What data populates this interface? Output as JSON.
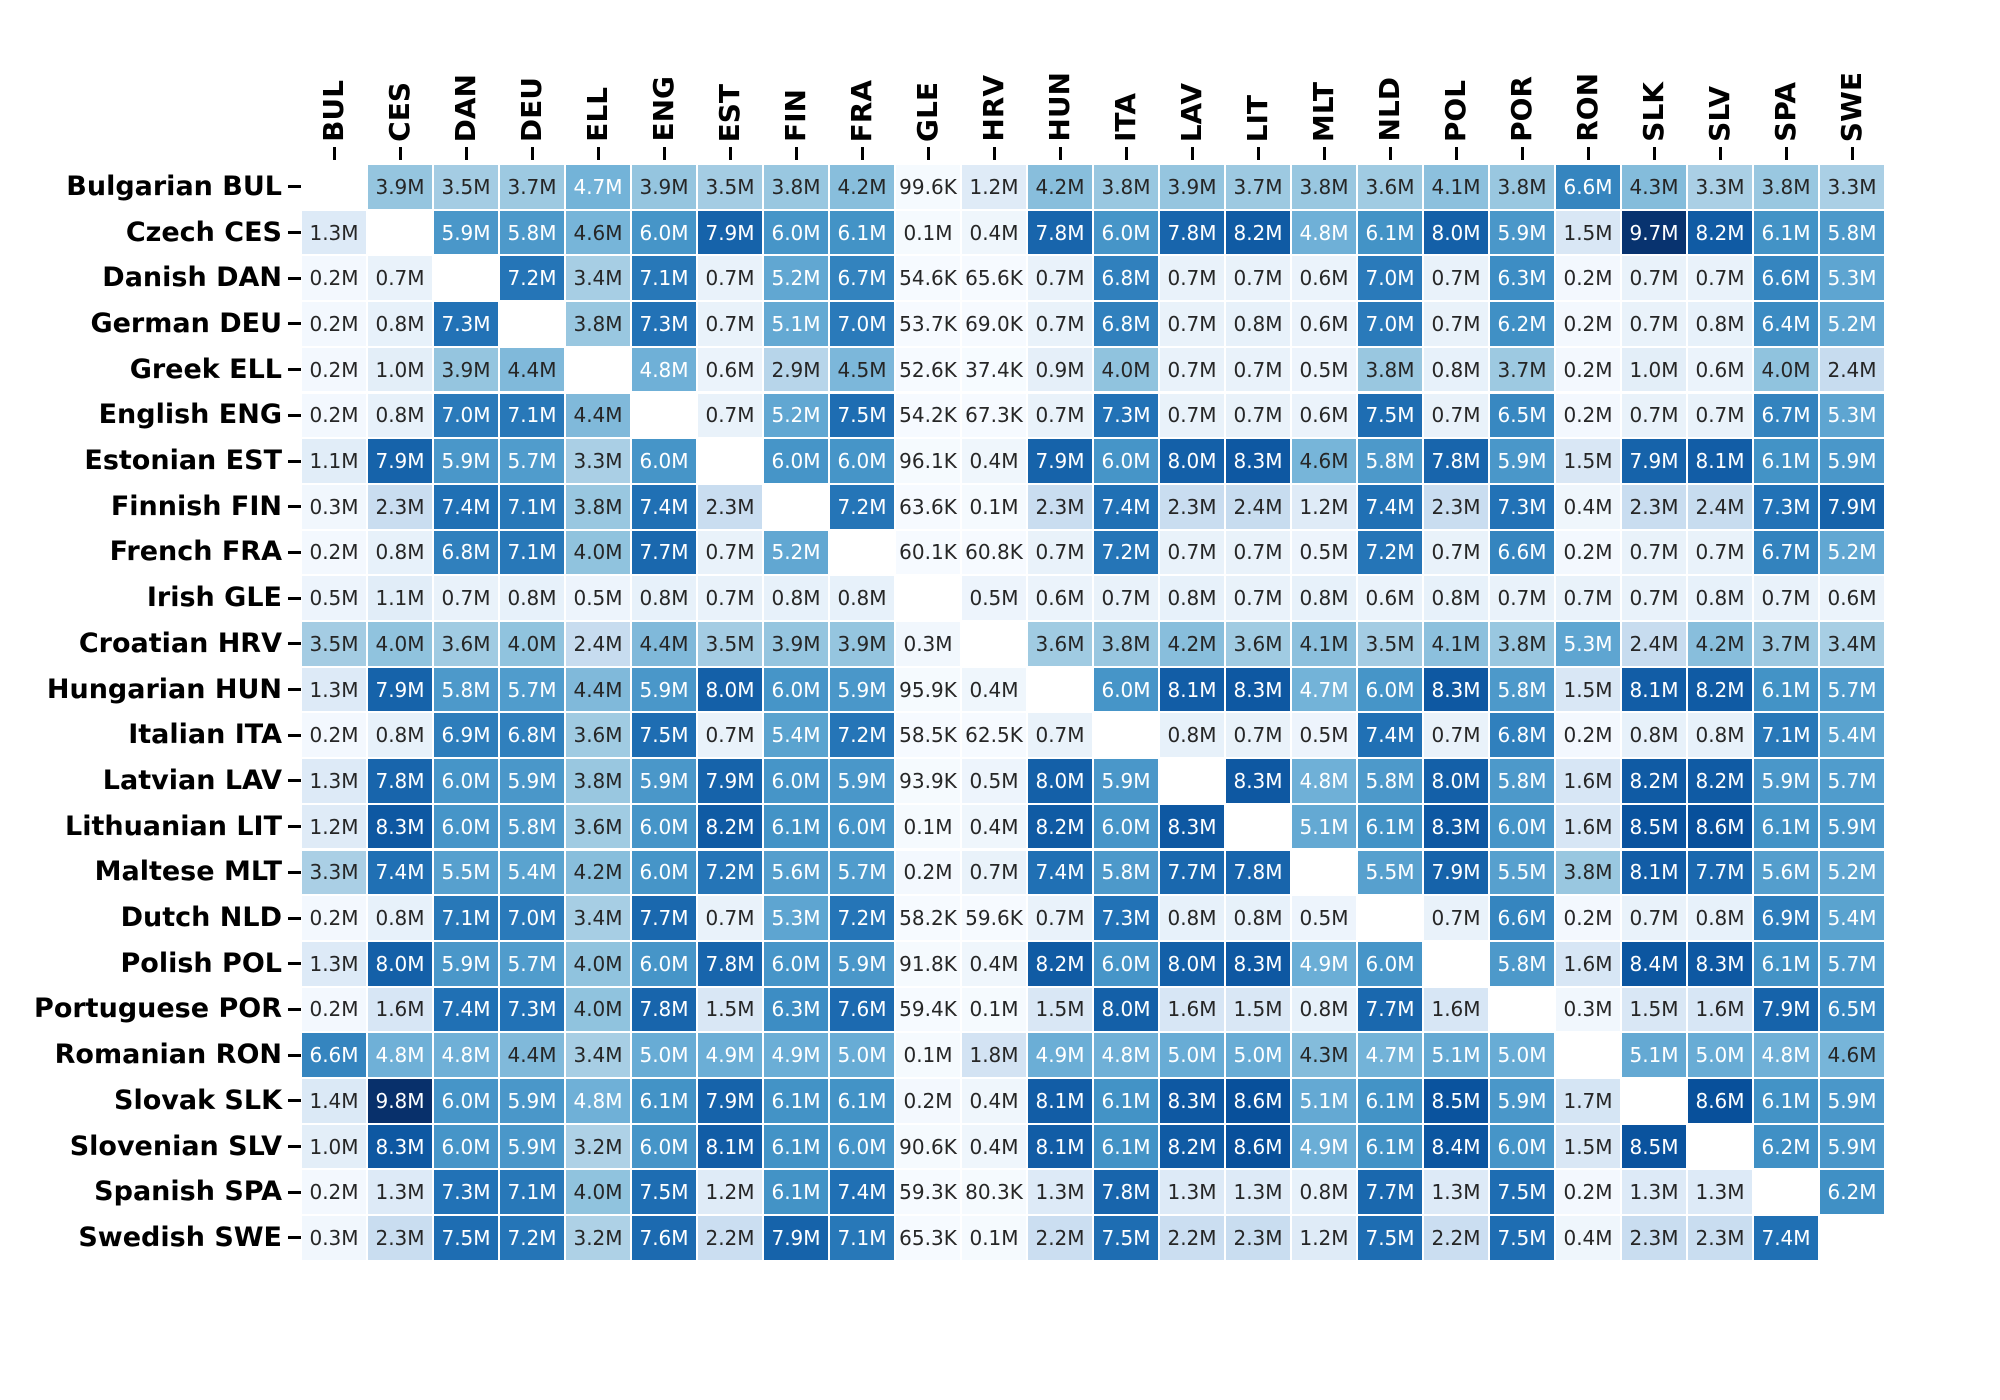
{
  "figure": {
    "background": "#ffffff",
    "title": ""
  },
  "chart_data": {
    "type": "heatmap",
    "columns": [
      "BUL",
      "CES",
      "DAN",
      "DEU",
      "ELL",
      "ENG",
      "EST",
      "FIN",
      "FRA",
      "GLE",
      "HRV",
      "HUN",
      "ITA",
      "LAV",
      "LIT",
      "MLT",
      "NLD",
      "POL",
      "POR",
      "RON",
      "SLK",
      "SLV",
      "SPA",
      "SWE"
    ],
    "rows": [
      {
        "label": "Bulgarian BUL",
        "language": "Bulgarian",
        "code": "BUL"
      },
      {
        "label": "Czech CES",
        "language": "Czech",
        "code": "CES"
      },
      {
        "label": "Danish DAN",
        "language": "Danish",
        "code": "DAN"
      },
      {
        "label": "German DEU",
        "language": "German",
        "code": "DEU"
      },
      {
        "label": "Greek ELL",
        "language": "Greek",
        "code": "ELL"
      },
      {
        "label": "English ENG",
        "language": "English",
        "code": "ENG"
      },
      {
        "label": "Estonian EST",
        "language": "Estonian",
        "code": "EST"
      },
      {
        "label": "Finnish FIN",
        "language": "Finnish",
        "code": "FIN"
      },
      {
        "label": "French FRA",
        "language": "French",
        "code": "FRA"
      },
      {
        "label": "Irish GLE",
        "language": "Irish",
        "code": "GLE"
      },
      {
        "label": "Croatian HRV",
        "language": "Croatian",
        "code": "HRV"
      },
      {
        "label": "Hungarian HUN",
        "language": "Hungarian",
        "code": "HUN"
      },
      {
        "label": "Italian ITA",
        "language": "Italian",
        "code": "ITA"
      },
      {
        "label": "Latvian LAV",
        "language": "Latvian",
        "code": "LAV"
      },
      {
        "label": "Lithuanian LIT",
        "language": "Lithuanian",
        "code": "LIT"
      },
      {
        "label": "Maltese MLT",
        "language": "Maltese",
        "code": "MLT"
      },
      {
        "label": "Dutch NLD",
        "language": "Dutch",
        "code": "NLD"
      },
      {
        "label": "Polish POL",
        "language": "Polish",
        "code": "POL"
      },
      {
        "label": "Portuguese POR",
        "language": "Portuguese",
        "code": "POR"
      },
      {
        "label": "Romanian RON",
        "language": "Romanian",
        "code": "RON"
      },
      {
        "label": "Slovak SLK",
        "language": "Slovak",
        "code": "SLK"
      },
      {
        "label": "Slovenian SLV",
        "language": "Slovenian",
        "code": "SLV"
      },
      {
        "label": "Spanish SPA",
        "language": "Spanish",
        "code": "SPA"
      },
      {
        "label": "Swedish SWE",
        "language": "Swedish",
        "code": "SWE"
      }
    ],
    "matrix": [
      [
        "",
        "3.9M",
        "3.5M",
        "3.7M",
        "4.7M",
        "3.9M",
        "3.5M",
        "3.8M",
        "4.2M",
        "99.6K",
        "1.2M",
        "4.2M",
        "3.8M",
        "3.9M",
        "3.7M",
        "3.8M",
        "3.6M",
        "4.1M",
        "3.8M",
        "6.6M",
        "4.3M",
        "3.3M",
        "3.8M",
        "3.3M"
      ],
      [
        "1.3M",
        "",
        "5.9M",
        "5.8M",
        "4.6M",
        "6.0M",
        "7.9M",
        "6.0M",
        "6.1M",
        "0.1M",
        "0.4M",
        "7.8M",
        "6.0M",
        "7.8M",
        "8.2M",
        "4.8M",
        "6.1M",
        "8.0M",
        "5.9M",
        "1.5M",
        "9.7M",
        "8.2M",
        "6.1M",
        "5.8M"
      ],
      [
        "0.2M",
        "0.7M",
        "",
        "7.2M",
        "3.4M",
        "7.1M",
        "0.7M",
        "5.2M",
        "6.7M",
        "54.6K",
        "65.6K",
        "0.7M",
        "6.8M",
        "0.7M",
        "0.7M",
        "0.6M",
        "7.0M",
        "0.7M",
        "6.3M",
        "0.2M",
        "0.7M",
        "0.7M",
        "6.6M",
        "5.3M"
      ],
      [
        "0.2M",
        "0.8M",
        "7.3M",
        "",
        "3.8M",
        "7.3M",
        "0.7M",
        "5.1M",
        "7.0M",
        "53.7K",
        "69.0K",
        "0.7M",
        "6.8M",
        "0.7M",
        "0.8M",
        "0.6M",
        "7.0M",
        "0.7M",
        "6.2M",
        "0.2M",
        "0.7M",
        "0.8M",
        "6.4M",
        "5.2M"
      ],
      [
        "0.2M",
        "1.0M",
        "3.9M",
        "4.4M",
        "",
        "4.8M",
        "0.6M",
        "2.9M",
        "4.5M",
        "52.6K",
        "37.4K",
        "0.9M",
        "4.0M",
        "0.7M",
        "0.7M",
        "0.5M",
        "3.8M",
        "0.8M",
        "3.7M",
        "0.2M",
        "1.0M",
        "0.6M",
        "4.0M",
        "2.4M"
      ],
      [
        "0.2M",
        "0.8M",
        "7.0M",
        "7.1M",
        "4.4M",
        "",
        "0.7M",
        "5.2M",
        "7.5M",
        "54.2K",
        "67.3K",
        "0.7M",
        "7.3M",
        "0.7M",
        "0.7M",
        "0.6M",
        "7.5M",
        "0.7M",
        "6.5M",
        "0.2M",
        "0.7M",
        "0.7M",
        "6.7M",
        "5.3M"
      ],
      [
        "1.1M",
        "7.9M",
        "5.9M",
        "5.7M",
        "3.3M",
        "6.0M",
        "",
        "6.0M",
        "6.0M",
        "96.1K",
        "0.4M",
        "7.9M",
        "6.0M",
        "8.0M",
        "8.3M",
        "4.6M",
        "5.8M",
        "7.8M",
        "5.9M",
        "1.5M",
        "7.9M",
        "8.1M",
        "6.1M",
        "5.9M"
      ],
      [
        "0.3M",
        "2.3M",
        "7.4M",
        "7.1M",
        "3.8M",
        "7.4M",
        "2.3M",
        "",
        "7.2M",
        "63.6K",
        "0.1M",
        "2.3M",
        "7.4M",
        "2.3M",
        "2.4M",
        "1.2M",
        "7.4M",
        "2.3M",
        "7.3M",
        "0.4M",
        "2.3M",
        "2.4M",
        "7.3M",
        "7.9M"
      ],
      [
        "0.2M",
        "0.8M",
        "6.8M",
        "7.1M",
        "4.0M",
        "7.7M",
        "0.7M",
        "5.2M",
        "",
        "60.1K",
        "60.8K",
        "0.7M",
        "7.2M",
        "0.7M",
        "0.7M",
        "0.5M",
        "7.2M",
        "0.7M",
        "6.6M",
        "0.2M",
        "0.7M",
        "0.7M",
        "6.7M",
        "5.2M"
      ],
      [
        "0.5M",
        "1.1M",
        "0.7M",
        "0.8M",
        "0.5M",
        "0.8M",
        "0.7M",
        "0.8M",
        "0.8M",
        "",
        "0.5M",
        "0.6M",
        "0.7M",
        "0.8M",
        "0.7M",
        "0.8M",
        "0.6M",
        "0.8M",
        "0.7M",
        "0.7M",
        "0.7M",
        "0.8M",
        "0.7M",
        "0.6M"
      ],
      [
        "3.5M",
        "4.0M",
        "3.6M",
        "4.0M",
        "2.4M",
        "4.4M",
        "3.5M",
        "3.9M",
        "3.9M",
        "0.3M",
        "",
        "3.6M",
        "3.8M",
        "4.2M",
        "3.6M",
        "4.1M",
        "3.5M",
        "4.1M",
        "3.8M",
        "5.3M",
        "2.4M",
        "4.2M",
        "3.7M",
        "3.4M"
      ],
      [
        "1.3M",
        "7.9M",
        "5.8M",
        "5.7M",
        "4.4M",
        "5.9M",
        "8.0M",
        "6.0M",
        "5.9M",
        "95.9K",
        "0.4M",
        "",
        "6.0M",
        "8.1M",
        "8.3M",
        "4.7M",
        "6.0M",
        "8.3M",
        "5.8M",
        "1.5M",
        "8.1M",
        "8.2M",
        "6.1M",
        "5.7M"
      ],
      [
        "0.2M",
        "0.8M",
        "6.9M",
        "6.8M",
        "3.6M",
        "7.5M",
        "0.7M",
        "5.4M",
        "7.2M",
        "58.5K",
        "62.5K",
        "0.7M",
        "",
        "0.8M",
        "0.7M",
        "0.5M",
        "7.4M",
        "0.7M",
        "6.8M",
        "0.2M",
        "0.8M",
        "0.8M",
        "7.1M",
        "5.4M"
      ],
      [
        "1.3M",
        "7.8M",
        "6.0M",
        "5.9M",
        "3.8M",
        "5.9M",
        "7.9M",
        "6.0M",
        "5.9M",
        "93.9K",
        "0.5M",
        "8.0M",
        "5.9M",
        "",
        "8.3M",
        "4.8M",
        "5.8M",
        "8.0M",
        "5.8M",
        "1.6M",
        "8.2M",
        "8.2M",
        "5.9M",
        "5.7M"
      ],
      [
        "1.2M",
        "8.3M",
        "6.0M",
        "5.8M",
        "3.6M",
        "6.0M",
        "8.2M",
        "6.1M",
        "6.0M",
        "0.1M",
        "0.4M",
        "8.2M",
        "6.0M",
        "8.3M",
        "",
        "5.1M",
        "6.1M",
        "8.3M",
        "6.0M",
        "1.6M",
        "8.5M",
        "8.6M",
        "6.1M",
        "5.9M"
      ],
      [
        "3.3M",
        "7.4M",
        "5.5M",
        "5.4M",
        "4.2M",
        "6.0M",
        "7.2M",
        "5.6M",
        "5.7M",
        "0.2M",
        "0.7M",
        "7.4M",
        "5.8M",
        "7.7M",
        "7.8M",
        "",
        "5.5M",
        "7.9M",
        "5.5M",
        "3.8M",
        "8.1M",
        "7.7M",
        "5.6M",
        "5.2M"
      ],
      [
        "0.2M",
        "0.8M",
        "7.1M",
        "7.0M",
        "3.4M",
        "7.7M",
        "0.7M",
        "5.3M",
        "7.2M",
        "58.2K",
        "59.6K",
        "0.7M",
        "7.3M",
        "0.8M",
        "0.8M",
        "0.5M",
        "",
        "0.7M",
        "6.6M",
        "0.2M",
        "0.7M",
        "0.8M",
        "6.9M",
        "5.4M"
      ],
      [
        "1.3M",
        "8.0M",
        "5.9M",
        "5.7M",
        "4.0M",
        "6.0M",
        "7.8M",
        "6.0M",
        "5.9M",
        "91.8K",
        "0.4M",
        "8.2M",
        "6.0M",
        "8.0M",
        "8.3M",
        "4.9M",
        "6.0M",
        "",
        "5.8M",
        "1.6M",
        "8.4M",
        "8.3M",
        "6.1M",
        "5.7M"
      ],
      [
        "0.2M",
        "1.6M",
        "7.4M",
        "7.3M",
        "4.0M",
        "7.8M",
        "1.5M",
        "6.3M",
        "7.6M",
        "59.4K",
        "0.1M",
        "1.5M",
        "8.0M",
        "1.6M",
        "1.5M",
        "0.8M",
        "7.7M",
        "1.6M",
        "",
        "0.3M",
        "1.5M",
        "1.6M",
        "7.9M",
        "6.5M"
      ],
      [
        "6.6M",
        "4.8M",
        "4.8M",
        "4.4M",
        "3.4M",
        "5.0M",
        "4.9M",
        "4.9M",
        "5.0M",
        "0.1M",
        "1.8M",
        "4.9M",
        "4.8M",
        "5.0M",
        "5.0M",
        "4.3M",
        "4.7M",
        "5.1M",
        "5.0M",
        "",
        "5.1M",
        "5.0M",
        "4.8M",
        "4.6M"
      ],
      [
        "1.4M",
        "9.8M",
        "6.0M",
        "5.9M",
        "4.8M",
        "6.1M",
        "7.9M",
        "6.1M",
        "6.1M",
        "0.2M",
        "0.4M",
        "8.1M",
        "6.1M",
        "8.3M",
        "8.6M",
        "5.1M",
        "6.1M",
        "8.5M",
        "5.9M",
        "1.7M",
        "",
        "8.6M",
        "6.1M",
        "5.9M"
      ],
      [
        "1.0M",
        "8.3M",
        "6.0M",
        "5.9M",
        "3.2M",
        "6.0M",
        "8.1M",
        "6.1M",
        "6.0M",
        "90.6K",
        "0.4M",
        "8.1M",
        "6.1M",
        "8.2M",
        "8.6M",
        "4.9M",
        "6.1M",
        "8.4M",
        "6.0M",
        "1.5M",
        "8.5M",
        "",
        "6.2M",
        "5.9M"
      ],
      [
        "0.2M",
        "1.3M",
        "7.3M",
        "7.1M",
        "4.0M",
        "7.5M",
        "1.2M",
        "6.1M",
        "7.4M",
        "59.3K",
        "80.3K",
        "1.3M",
        "7.8M",
        "1.3M",
        "1.3M",
        "0.8M",
        "7.7M",
        "1.3M",
        "7.5M",
        "0.2M",
        "1.3M",
        "1.3M",
        "",
        "6.2M"
      ],
      [
        "0.3M",
        "2.3M",
        "7.5M",
        "7.2M",
        "3.2M",
        "7.6M",
        "2.2M",
        "7.9M",
        "7.1M",
        "65.3K",
        "0.1M",
        "2.2M",
        "7.5M",
        "2.2M",
        "2.3M",
        "1.2M",
        "7.5M",
        "2.2M",
        "7.5M",
        "0.4M",
        "2.3M",
        "2.3M",
        "7.4M",
        ""
      ]
    ],
    "value_suffix_units": {
      "M": 1000000,
      "K": 1000
    },
    "value_range": {
      "min_visible": "37.4K",
      "max_visible": "9.8M"
    },
    "diagonal": "empty",
    "legend": "none",
    "grid_gap_color": "#ffffff",
    "tick_color": "#000000",
    "colormap": {
      "name": "Blues",
      "vmin": 0,
      "vmax": 9800000,
      "anchors": [
        "#f7fbff",
        "#deebf7",
        "#c6dbef",
        "#9ecae1",
        "#6baed6",
        "#4292c6",
        "#2171b5",
        "#08519c",
        "#08306b"
      ],
      "white_text_threshold": 0.478,
      "annotation_dark": "#262626",
      "annotation_light": "#ffffff"
    }
  }
}
